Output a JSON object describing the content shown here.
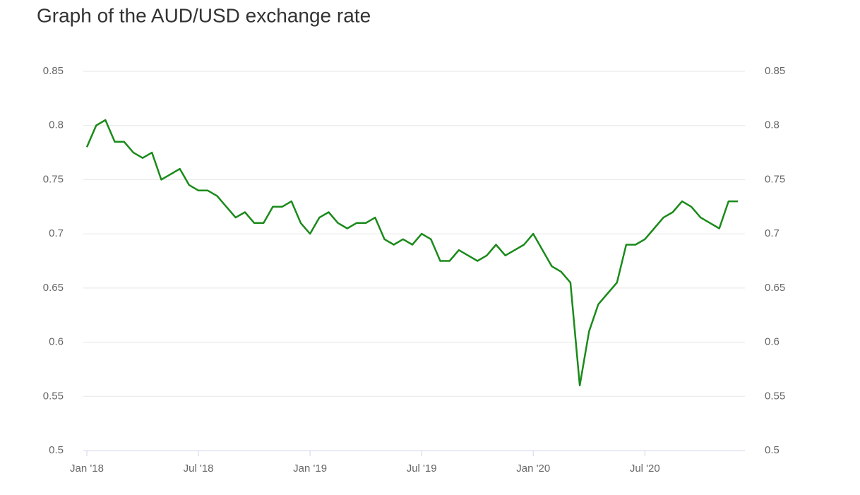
{
  "chart_data": {
    "type": "line",
    "title": "Graph of the AUD/USD exchange rate",
    "categories": [
      "Jan '18",
      null,
      null,
      null,
      null,
      null,
      null,
      null,
      null,
      null,
      null,
      null,
      "Jul '18",
      null,
      null,
      null,
      null,
      null,
      null,
      null,
      null,
      null,
      null,
      null,
      "Jan '19",
      null,
      null,
      null,
      null,
      null,
      null,
      null,
      null,
      null,
      null,
      null,
      "Jul '19",
      null,
      null,
      null,
      null,
      null,
      null,
      null,
      null,
      null,
      null,
      null,
      "Jan '20",
      null,
      null,
      null,
      null,
      null,
      null,
      null,
      null,
      null,
      null,
      null,
      "Jul '20",
      null,
      null,
      null,
      null,
      null,
      null,
      null,
      null,
      null,
      null
    ],
    "values": [
      0.78,
      0.8,
      0.805,
      0.785,
      0.785,
      0.775,
      0.77,
      0.775,
      0.75,
      0.755,
      0.76,
      0.745,
      0.74,
      0.74,
      0.735,
      0.725,
      0.715,
      0.72,
      0.71,
      0.71,
      0.725,
      0.725,
      0.73,
      0.71,
      0.7,
      0.715,
      0.72,
      0.71,
      0.705,
      0.71,
      0.71,
      0.715,
      0.695,
      0.69,
      0.695,
      0.69,
      0.7,
      0.695,
      0.675,
      0.675,
      0.685,
      0.68,
      0.675,
      0.68,
      0.69,
      0.68,
      0.685,
      0.69,
      0.7,
      0.685,
      0.67,
      0.665,
      0.655,
      0.56,
      0.61,
      0.635,
      0.645,
      0.655,
      0.69,
      0.69,
      0.695,
      0.705,
      0.715,
      0.72,
      0.73,
      0.725,
      0.715,
      0.71,
      0.705,
      0.73,
      0.73
    ],
    "color": "#1a8a1a",
    "ylim": [
      0.5,
      0.85
    ],
    "yticks": [
      0.5,
      0.55,
      0.6,
      0.65,
      0.7,
      0.75,
      0.8,
      0.85
    ],
    "grid": true
  }
}
